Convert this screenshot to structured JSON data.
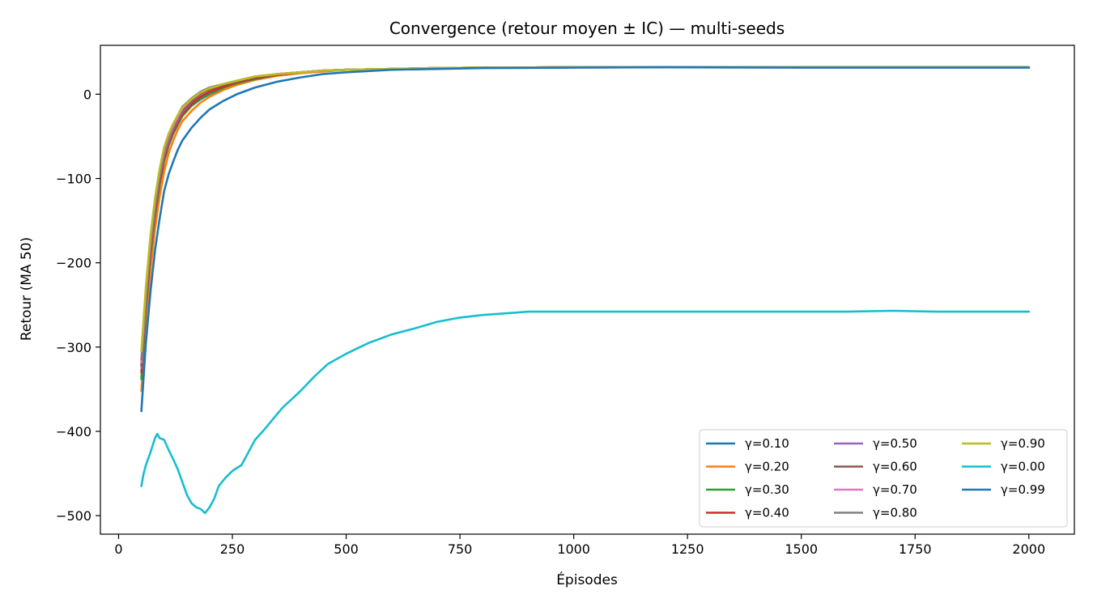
{
  "chart_data": {
    "type": "line",
    "title": "Convergence (retour moyen ± IC) — multi-seeds",
    "xlabel": "Épisodes",
    "ylabel": "Retour (MA 50)",
    "xlim": [
      -40,
      2100
    ],
    "ylim": [
      -522,
      58
    ],
    "xticks": [
      0,
      250,
      500,
      750,
      1000,
      1250,
      1500,
      1750,
      2000
    ],
    "yticks": [
      0,
      -100,
      -200,
      -300,
      -400,
      -500
    ],
    "xtick_labels": [
      "0",
      "250",
      "500",
      "750",
      "1000",
      "1250",
      "1500",
      "1750",
      "2000"
    ],
    "ytick_labels": [
      "0",
      "−100",
      "−200",
      "−300",
      "−400",
      "−500"
    ],
    "grid": false,
    "legend_position": "lower-right",
    "legend_columns": 3,
    "series": [
      {
        "name": "γ=0.10",
        "color": "#1f77b4",
        "x": [
          50,
          60,
          70,
          80,
          90,
          100,
          110,
          120,
          130,
          140,
          160,
          180,
          200,
          230,
          260,
          300,
          350,
          400,
          450,
          500,
          600,
          700,
          800,
          1000,
          1200,
          1500,
          1800,
          2000
        ],
        "y": [
          -320,
          -245,
          -185,
          -140,
          -105,
          -78,
          -60,
          -46,
          -35,
          -25,
          -14,
          -6,
          0,
          7,
          12,
          18,
          23,
          26,
          28,
          29,
          30,
          31,
          31.5,
          32,
          32,
          32,
          32,
          32
        ]
      },
      {
        "name": "γ=0.20",
        "color": "#ff7f0e",
        "x": [
          50,
          60,
          70,
          80,
          90,
          100,
          110,
          120,
          130,
          140,
          160,
          180,
          200,
          230,
          260,
          300,
          350,
          400,
          450,
          500,
          600,
          700,
          800,
          1000,
          1200,
          1500,
          1800,
          2000
        ],
        "y": [
          -352,
          -270,
          -210,
          -160,
          -122,
          -92,
          -70,
          -55,
          -42,
          -32,
          -20,
          -10,
          -3,
          5,
          11,
          17,
          22,
          25,
          27,
          29,
          30,
          31,
          31.5,
          32,
          32,
          32,
          32,
          32
        ]
      },
      {
        "name": "γ=0.30",
        "color": "#2ca02c",
        "x": [
          50,
          60,
          70,
          80,
          90,
          100,
          110,
          120,
          130,
          140,
          160,
          180,
          200,
          230,
          260,
          300,
          350,
          400,
          450,
          500,
          600,
          700,
          800,
          1000,
          1200,
          1500,
          1800,
          2000
        ],
        "y": [
          -338,
          -255,
          -192,
          -145,
          -108,
          -80,
          -61,
          -47,
          -36,
          -26,
          -14,
          -5,
          1,
          8,
          13,
          18,
          23,
          26,
          28,
          29,
          30,
          31,
          31.5,
          32,
          32,
          32,
          32,
          32
        ]
      },
      {
        "name": "γ=0.40",
        "color": "#d62728",
        "x": [
          50,
          60,
          70,
          80,
          90,
          100,
          110,
          120,
          130,
          140,
          160,
          180,
          200,
          230,
          260,
          300,
          350,
          400,
          450,
          500,
          600,
          700,
          800,
          1000,
          1200,
          1500,
          1800,
          2000
        ],
        "y": [
          -330,
          -250,
          -188,
          -140,
          -104,
          -77,
          -58,
          -45,
          -34,
          -24,
          -12,
          -3,
          3,
          9,
          14,
          19,
          23,
          26,
          28,
          29,
          30,
          31,
          31.5,
          32,
          32,
          32,
          32,
          32
        ]
      },
      {
        "name": "γ=0.50",
        "color": "#9467bd",
        "x": [
          50,
          60,
          70,
          80,
          90,
          100,
          110,
          120,
          130,
          140,
          160,
          180,
          200,
          230,
          260,
          300,
          350,
          400,
          450,
          500,
          600,
          700,
          800,
          1000,
          1200,
          1500,
          1800,
          2000
        ],
        "y": [
          -325,
          -245,
          -183,
          -136,
          -100,
          -73,
          -55,
          -42,
          -31,
          -21,
          -9,
          0,
          6,
          11,
          15,
          20,
          24,
          26,
          28,
          29,
          30,
          31,
          31.5,
          32,
          32,
          32,
          32,
          32
        ]
      },
      {
        "name": "γ=0.60",
        "color": "#8c564b",
        "x": [
          50,
          60,
          70,
          80,
          90,
          100,
          110,
          120,
          130,
          140,
          160,
          180,
          200,
          230,
          260,
          300,
          350,
          400,
          450,
          500,
          600,
          700,
          800,
          1000,
          1200,
          1500,
          1800,
          2000
        ],
        "y": [
          -322,
          -242,
          -180,
          -133,
          -98,
          -71,
          -53,
          -40,
          -29,
          -19,
          -8,
          1,
          6,
          11,
          15,
          20,
          24,
          26,
          28,
          29,
          30,
          31,
          31.5,
          32,
          32,
          32,
          32,
          32
        ]
      },
      {
        "name": "γ=0.70",
        "color": "#e377c2",
        "x": [
          50,
          60,
          70,
          80,
          90,
          100,
          110,
          120,
          130,
          140,
          160,
          180,
          200,
          230,
          260,
          300,
          350,
          400,
          450,
          500,
          600,
          700,
          800,
          1000,
          1200,
          1500,
          1800,
          2000
        ],
        "y": [
          -318,
          -238,
          -177,
          -130,
          -95,
          -69,
          -51,
          -38,
          -27,
          -17,
          -6,
          3,
          8,
          12,
          16,
          21,
          24,
          26,
          28,
          29,
          30,
          31,
          31.5,
          32,
          32,
          32,
          32,
          32
        ]
      },
      {
        "name": "γ=0.80",
        "color": "#7f7f7f",
        "x": [
          50,
          60,
          70,
          80,
          90,
          100,
          110,
          120,
          130,
          140,
          160,
          180,
          200,
          230,
          260,
          300,
          350,
          400,
          450,
          500,
          600,
          700,
          800,
          1000,
          1200,
          1500,
          1800,
          2000
        ],
        "y": [
          -315,
          -235,
          -174,
          -128,
          -93,
          -67,
          -49,
          -36,
          -25,
          -15,
          -5,
          3,
          8,
          12,
          16,
          21,
          24,
          26,
          28,
          29,
          30,
          31,
          31.5,
          32,
          32,
          32,
          32,
          32
        ]
      },
      {
        "name": "γ=0.90",
        "color": "#bcbd22",
        "x": [
          50,
          60,
          70,
          80,
          90,
          100,
          110,
          120,
          130,
          140,
          160,
          180,
          200,
          230,
          260,
          300,
          350,
          400,
          450,
          500,
          600,
          700,
          800,
          1000,
          1200,
          1500,
          1800,
          2000
        ],
        "y": [
          -305,
          -228,
          -168,
          -123,
          -89,
          -63,
          -47,
          -35,
          -25,
          -16,
          -6,
          2,
          7,
          12,
          16,
          21,
          24,
          26,
          28,
          29,
          30,
          31,
          31.5,
          32,
          32,
          32,
          32,
          32
        ]
      },
      {
        "name": "γ=0.00",
        "color": "#17becf",
        "x": [
          50,
          55,
          60,
          70,
          80,
          85,
          90,
          100,
          110,
          120,
          130,
          140,
          150,
          160,
          170,
          180,
          190,
          200,
          210,
          220,
          235,
          250,
          270,
          285,
          300,
          320,
          340,
          360,
          380,
          400,
          430,
          460,
          500,
          550,
          600,
          650,
          700,
          750,
          800,
          850,
          900,
          1000,
          1100,
          1200,
          1300,
          1400,
          1500,
          1600,
          1700,
          1800,
          1900,
          2000
        ],
        "y": [
          -465,
          -450,
          -440,
          -425,
          -408,
          -403,
          -408,
          -410,
          -422,
          -433,
          -445,
          -460,
          -475,
          -485,
          -490,
          -492,
          -497,
          -490,
          -480,
          -465,
          -455,
          -447,
          -440,
          -425,
          -410,
          -398,
          -385,
          -372,
          -362,
          -352,
          -335,
          -320,
          -308,
          -295,
          -285,
          -278,
          -270,
          -265,
          -262,
          -260,
          -258,
          -258,
          -258,
          -258,
          -258,
          -258,
          -258,
          -258,
          -257,
          -258,
          -258,
          -258
        ]
      },
      {
        "name": "γ=0.99",
        "color": "#1f77b4",
        "x": [
          50,
          60,
          70,
          80,
          90,
          100,
          110,
          120,
          130,
          140,
          160,
          180,
          200,
          230,
          260,
          300,
          350,
          400,
          450,
          500,
          600,
          700,
          800,
          1000,
          1200,
          1500,
          1800,
          2000
        ],
        "y": [
          -376,
          -295,
          -235,
          -185,
          -148,
          -115,
          -95,
          -80,
          -66,
          -55,
          -40,
          -28,
          -18,
          -8,
          0,
          8,
          15,
          20,
          24,
          26,
          29,
          30,
          31,
          31.5,
          32,
          31.5,
          31.5,
          31.5
        ]
      }
    ]
  }
}
